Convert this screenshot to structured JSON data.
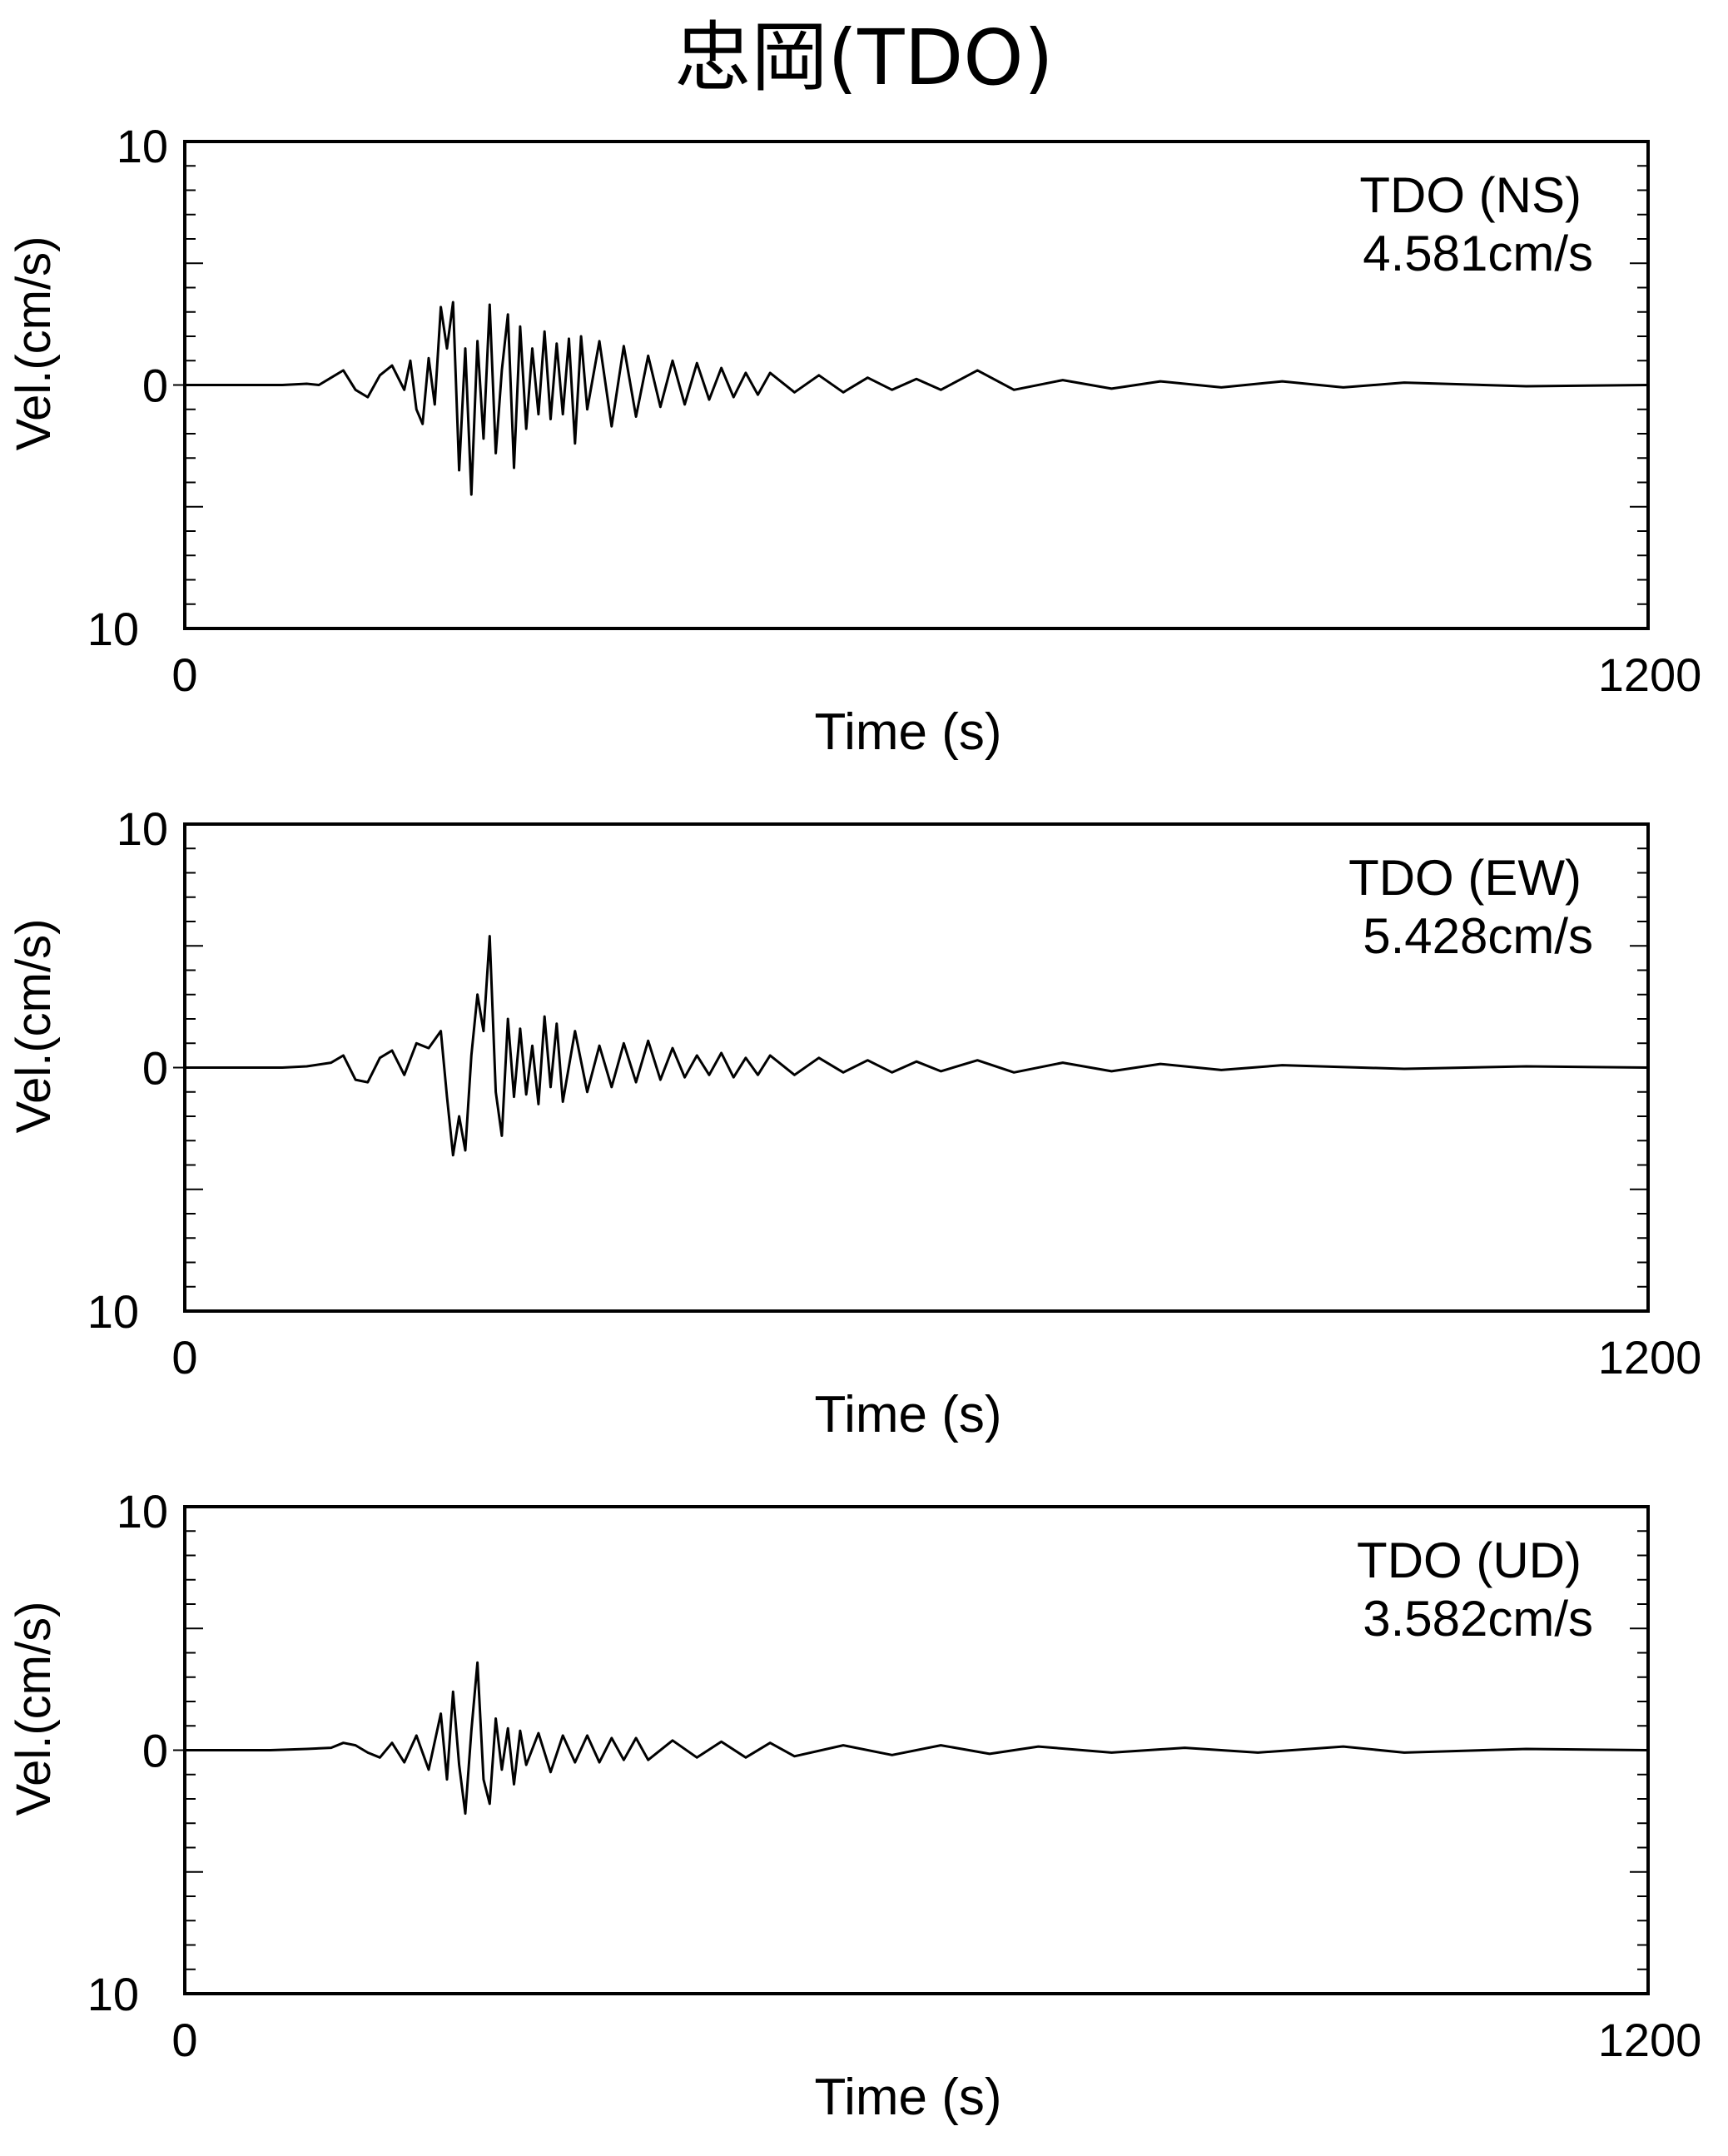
{
  "title": "忠岡(TDO)",
  "chart_data": [
    {
      "type": "line",
      "station_label": "TDO (NS)",
      "peak_label": "4.581cm/s",
      "xlabel": "Time (s)",
      "ylabel": "Vel.(cm/s)",
      "xlim": [
        0,
        1200
      ],
      "ylim": [
        -10,
        10
      ],
      "x_tick_labels": [
        "0",
        "1200"
      ],
      "y_tick_labels": [
        "10",
        "0",
        "10"
      ],
      "grid": false,
      "series": [
        {
          "x": [
            0,
            80,
            100,
            110,
            120,
            130,
            140,
            150,
            160,
            170,
            180,
            185,
            190,
            195,
            200,
            205,
            210,
            215,
            220,
            225,
            230,
            235,
            240,
            245,
            250,
            255,
            260,
            265,
            270,
            275,
            280,
            285,
            290,
            295,
            300,
            305,
            310,
            315,
            320,
            325,
            330,
            340,
            350,
            360,
            370,
            380,
            390,
            400,
            410,
            420,
            430,
            440,
            450,
            460,
            470,
            480,
            500,
            520,
            540,
            560,
            580,
            600,
            620,
            650,
            680,
            720,
            760,
            800,
            850,
            900,
            950,
            1000,
            1100,
            1200
          ],
          "values": [
            0,
            0,
            0.05,
            0,
            0.3,
            0.6,
            -0.2,
            -0.5,
            0.4,
            0.8,
            -0.2,
            1.0,
            -1.0,
            -1.6,
            1.1,
            -0.8,
            3.2,
            1.5,
            3.4,
            -3.5,
            1.5,
            -4.5,
            1.8,
            -2.2,
            3.3,
            -2.8,
            0.6,
            2.9,
            -3.4,
            2.4,
            -1.8,
            1.5,
            -1.2,
            2.2,
            -1.4,
            1.7,
            -1.2,
            1.9,
            -2.4,
            2.0,
            -1.0,
            1.8,
            -1.7,
            1.6,
            -1.3,
            1.2,
            -0.9,
            1.0,
            -0.8,
            0.9,
            -0.6,
            0.7,
            -0.5,
            0.5,
            -0.4,
            0.5,
            -0.3,
            0.4,
            -0.3,
            0.3,
            -0.2,
            0.25,
            -0.2,
            0.6,
            -0.2,
            0.2,
            -0.15,
            0.15,
            -0.1,
            0.15,
            -0.1,
            0.1,
            -0.05,
            0
          ]
        }
      ]
    },
    {
      "type": "line",
      "station_label": "TDO (EW)",
      "peak_label": "5.428cm/s",
      "xlabel": "Time (s)",
      "ylabel": "Vel.(cm/s)",
      "xlim": [
        0,
        1200
      ],
      "ylim": [
        -10,
        10
      ],
      "x_tick_labels": [
        "0",
        "1200"
      ],
      "y_tick_labels": [
        "10",
        "0",
        "10"
      ],
      "grid": false,
      "series": [
        {
          "x": [
            0,
            80,
            100,
            120,
            130,
            140,
            150,
            160,
            170,
            180,
            190,
            200,
            210,
            215,
            220,
            225,
            230,
            235,
            240,
            245,
            250,
            255,
            260,
            265,
            270,
            275,
            280,
            285,
            290,
            295,
            300,
            305,
            310,
            320,
            330,
            340,
            350,
            360,
            370,
            380,
            390,
            400,
            410,
            420,
            430,
            440,
            450,
            460,
            470,
            480,
            500,
            520,
            540,
            560,
            580,
            600,
            620,
            650,
            680,
            720,
            760,
            800,
            850,
            900,
            1000,
            1100,
            1200
          ],
          "values": [
            0,
            0,
            0.05,
            0.2,
            0.5,
            -0.5,
            -0.6,
            0.4,
            0.7,
            -0.3,
            1.0,
            0.8,
            1.5,
            -1.2,
            -3.6,
            -2.0,
            -3.4,
            0.5,
            3.0,
            1.5,
            5.4,
            -1.0,
            -2.8,
            2.0,
            -1.2,
            1.6,
            -1.1,
            0.9,
            -1.5,
            2.1,
            -0.8,
            1.8,
            -1.4,
            1.5,
            -1.0,
            0.9,
            -0.8,
            1.0,
            -0.6,
            1.1,
            -0.5,
            0.8,
            -0.4,
            0.5,
            -0.3,
            0.6,
            -0.4,
            0.4,
            -0.3,
            0.5,
            -0.3,
            0.4,
            -0.2,
            0.3,
            -0.2,
            0.25,
            -0.15,
            0.3,
            -0.2,
            0.2,
            -0.15,
            0.15,
            -0.1,
            0.1,
            -0.05,
            0.05,
            0
          ]
        }
      ]
    },
    {
      "type": "line",
      "station_label": "TDO (UD)",
      "peak_label": "3.582cm/s",
      "xlabel": "Time (s)",
      "ylabel": "Vel.(cm/s)",
      "xlim": [
        0,
        1200
      ],
      "ylim": [
        -10,
        10
      ],
      "x_tick_labels": [
        "0",
        "1200"
      ],
      "y_tick_labels": [
        "10",
        "0",
        "10"
      ],
      "grid": false,
      "series": [
        {
          "x": [
            0,
            70,
            100,
            120,
            130,
            140,
            150,
            160,
            170,
            180,
            190,
            200,
            210,
            215,
            220,
            225,
            230,
            235,
            240,
            245,
            250,
            255,
            260,
            265,
            270,
            275,
            280,
            290,
            300,
            310,
            320,
            330,
            340,
            350,
            360,
            370,
            380,
            400,
            420,
            440,
            460,
            480,
            500,
            540,
            580,
            620,
            660,
            700,
            760,
            820,
            880,
            950,
            1000,
            1100,
            1200
          ],
          "values": [
            0,
            0,
            0.05,
            0.1,
            0.3,
            0.2,
            -0.1,
            -0.3,
            0.3,
            -0.5,
            0.6,
            -0.8,
            1.5,
            -1.2,
            2.4,
            -0.6,
            -2.6,
            0.8,
            3.6,
            -1.2,
            -2.2,
            1.3,
            -0.8,
            0.9,
            -1.4,
            0.8,
            -0.6,
            0.7,
            -0.9,
            0.6,
            -0.5,
            0.6,
            -0.5,
            0.5,
            -0.4,
            0.5,
            -0.4,
            0.4,
            -0.3,
            0.35,
            -0.3,
            0.3,
            -0.25,
            0.2,
            -0.2,
            0.2,
            -0.15,
            0.15,
            -0.1,
            0.1,
            -0.1,
            0.15,
            -0.1,
            0.05,
            0
          ]
        }
      ]
    }
  ]
}
